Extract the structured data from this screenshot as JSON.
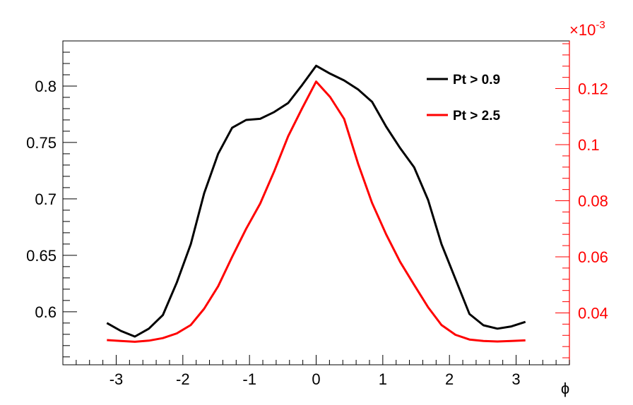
{
  "chart_data": {
    "type": "line",
    "title": "",
    "xlabel": "ϕ",
    "ylabel": "",
    "y2label": "",
    "xlim": [
      -3.8,
      3.8
    ],
    "ylim": [
      0.553,
      0.84
    ],
    "y2lim": [
      0.0215,
      0.137
    ],
    "y2_multiplier": "×10",
    "y2_exponent": "-3",
    "xticks": [
      -3,
      -2,
      -1,
      0,
      1,
      2,
      3
    ],
    "xtick_labels": [
      "-3",
      "-2",
      "-1",
      "0",
      "1",
      "2",
      "3"
    ],
    "yticks": [
      0.6,
      0.65,
      0.7,
      0.75,
      0.8
    ],
    "ytick_labels": [
      "0.6",
      "0.65",
      "0.7",
      "0.75",
      "0.8"
    ],
    "y2ticks": [
      0.04,
      0.06,
      0.08,
      0.1,
      0.12
    ],
    "y2tick_labels": [
      "0.04",
      "0.06",
      "0.08",
      "0.1",
      "0.12"
    ],
    "grid": false,
    "legend_position": "top-right",
    "series": [
      {
        "name": "Pt > 0.9",
        "axis": "left",
        "color": "#000000",
        "x": [
          -3.14,
          -2.93,
          -2.72,
          -2.51,
          -2.3,
          -2.09,
          -1.88,
          -1.68,
          -1.47,
          -1.26,
          -1.05,
          -0.84,
          -0.63,
          -0.42,
          -0.21,
          0.0,
          0.21,
          0.42,
          0.63,
          0.84,
          1.05,
          1.26,
          1.47,
          1.68,
          1.88,
          2.09,
          2.3,
          2.51,
          2.72,
          2.93,
          3.14
        ],
        "y": [
          0.59,
          0.583,
          0.578,
          0.585,
          0.597,
          0.626,
          0.66,
          0.705,
          0.74,
          0.763,
          0.77,
          0.771,
          0.777,
          0.785,
          0.801,
          0.818,
          0.811,
          0.805,
          0.797,
          0.786,
          0.764,
          0.745,
          0.728,
          0.699,
          0.66,
          0.629,
          0.598,
          0.588,
          0.585,
          0.587,
          0.591
        ]
      },
      {
        "name": "Pt > 2.5",
        "axis": "right",
        "color": "#ff0000",
        "x": [
          -3.14,
          -2.93,
          -2.72,
          -2.51,
          -2.3,
          -2.09,
          -1.88,
          -1.68,
          -1.47,
          -1.26,
          -1.05,
          -0.84,
          -0.63,
          -0.42,
          -0.21,
          0.0,
          0.21,
          0.42,
          0.63,
          0.84,
          1.05,
          1.26,
          1.47,
          1.68,
          1.88,
          2.09,
          2.3,
          2.51,
          2.72,
          2.93,
          3.14
        ],
        "y": [
          0.0303,
          0.03,
          0.0297,
          0.0301,
          0.031,
          0.0327,
          0.0357,
          0.0415,
          0.0495,
          0.06,
          0.07,
          0.079,
          0.0905,
          0.103,
          0.113,
          0.1225,
          0.117,
          0.1092,
          0.0932,
          0.0792,
          0.068,
          0.0582,
          0.05,
          0.042,
          0.0357,
          0.0322,
          0.0305,
          0.03,
          0.0298,
          0.03,
          0.0302
        ]
      }
    ]
  }
}
